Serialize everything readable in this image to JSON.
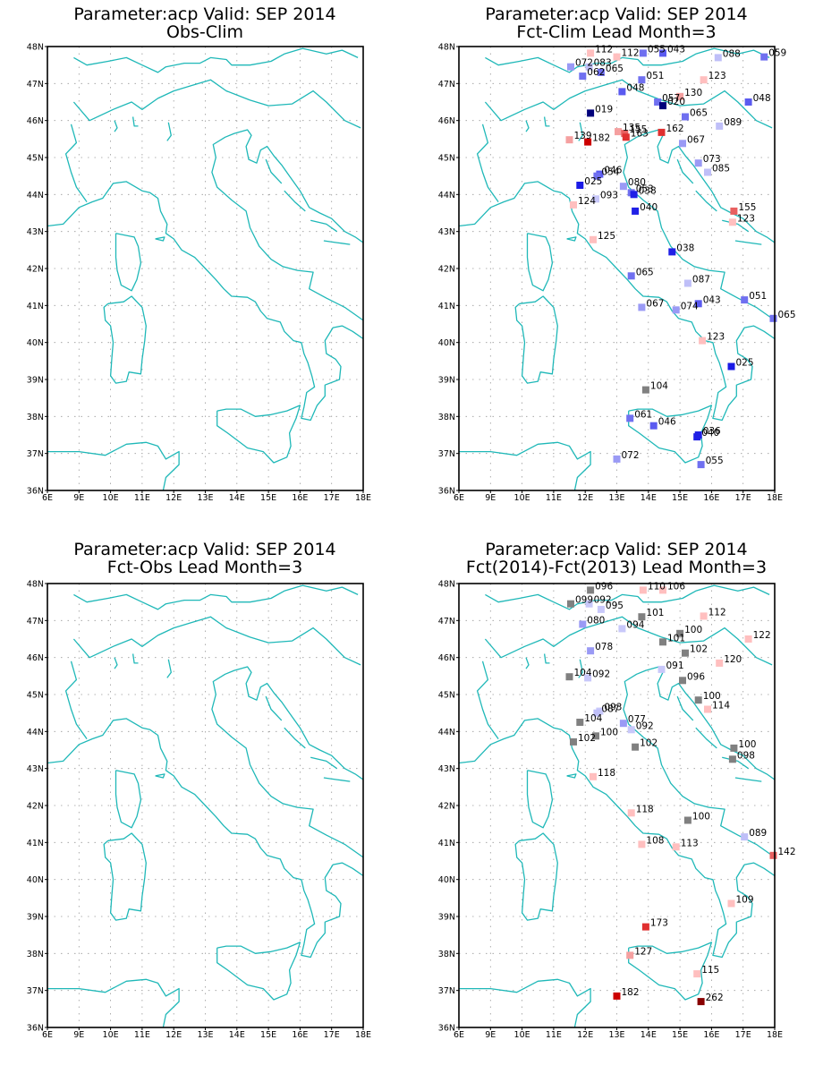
{
  "colors": {
    "coast": "#1fb8b8",
    "grid": "#9a9a9a",
    "neutral_marker": "#808080",
    "scale": {
      "20": "#00007a",
      "25": "#1a1ae6",
      "40": "#2020e6",
      "50": "#5a5af0",
      "65": "#7070f0",
      "80": "#9a9af5",
      "90": "#bfbff8",
      "95": "#c8c8fa",
      "105": "#808080",
      "125": "#ffbfbf",
      "140": "#f5a0a0",
      "160": "#e86060",
      "180": "#e03030",
      "240": "#cc0000",
      "999": "#880000"
    }
  },
  "chart_data": [
    {
      "type": "scatter",
      "panel": "top-left",
      "title": "Parameter:acp Valid: SEP 2014",
      "subtitle": "Obs-Clim",
      "xlabel": "",
      "ylabel": "",
      "xlim": [
        6,
        18
      ],
      "ylim": [
        36,
        48
      ],
      "xticks": [
        "6E",
        "9E",
        "10E",
        "11E",
        "12E",
        "13E",
        "14E",
        "15E",
        "16E",
        "17E",
        "18E"
      ],
      "yticks": [
        "36N",
        "37N",
        "38N",
        "39N",
        "40N",
        "41N",
        "42N",
        "43N",
        "44N",
        "45N",
        "46N",
        "47N",
        "48N"
      ],
      "grid": true,
      "points": []
    },
    {
      "type": "scatter",
      "panel": "top-right",
      "title": "Parameter:acp Valid: SEP 2014",
      "subtitle": "Fct-Clim Lead Month=3",
      "xlabel": "",
      "ylabel": "",
      "xlim": [
        6,
        18
      ],
      "ylim": [
        36,
        48
      ],
      "xticks": [
        "6E",
        "9E",
        "10E",
        "11E",
        "12E",
        "13E",
        "14E",
        "15E",
        "16E",
        "17E",
        "18E"
      ],
      "yticks": [
        "36N",
        "37N",
        "38N",
        "39N",
        "40N",
        "41N",
        "42N",
        "43N",
        "44N",
        "45N",
        "46N",
        "47N",
        "48N"
      ],
      "grid": true,
      "points": [
        {
          "lon": 11.0,
          "lat": 47.82,
          "label": "112"
        },
        {
          "lon": 12.0,
          "lat": 47.72,
          "label": "112"
        },
        {
          "lon": 13.0,
          "lat": 47.82,
          "label": "055"
        },
        {
          "lon": 13.75,
          "lat": 47.82,
          "label": "043"
        },
        {
          "lon": 10.25,
          "lat": 47.45,
          "label": "072"
        },
        {
          "lon": 10.95,
          "lat": 47.45,
          "label": "083"
        },
        {
          "lon": 11.4,
          "lat": 47.3,
          "label": "065"
        },
        {
          "lon": 10.7,
          "lat": 47.2,
          "label": "062"
        },
        {
          "lon": 12.95,
          "lat": 47.1,
          "label": "051"
        },
        {
          "lon": 15.85,
          "lat": 47.7,
          "label": "088"
        },
        {
          "lon": 17.6,
          "lat": 47.72,
          "label": "059"
        },
        {
          "lon": 15.3,
          "lat": 47.1,
          "label": "123"
        },
        {
          "lon": 12.2,
          "lat": 46.78,
          "label": "048"
        },
        {
          "lon": 14.4,
          "lat": 46.65,
          "label": "130"
        },
        {
          "lon": 13.55,
          "lat": 46.5,
          "label": "057"
        },
        {
          "lon": 13.75,
          "lat": 46.4,
          "label": "020"
        },
        {
          "lon": 17.0,
          "lat": 46.5,
          "label": "048"
        },
        {
          "lon": 11.0,
          "lat": 46.2,
          "label": "019"
        },
        {
          "lon": 14.6,
          "lat": 46.1,
          "label": "065"
        },
        {
          "lon": 15.9,
          "lat": 45.85,
          "label": "089"
        },
        {
          "lon": 12.05,
          "lat": 45.7,
          "label": "135"
        },
        {
          "lon": 12.3,
          "lat": 45.65,
          "label": "155"
        },
        {
          "lon": 12.35,
          "lat": 45.55,
          "label": "163"
        },
        {
          "lon": 13.7,
          "lat": 45.68,
          "label": "162"
        },
        {
          "lon": 10.2,
          "lat": 45.48,
          "label": "139"
        },
        {
          "lon": 10.9,
          "lat": 45.42,
          "label": "182"
        },
        {
          "lon": 14.5,
          "lat": 45.38,
          "label": "067"
        },
        {
          "lon": 15.1,
          "lat": 44.85,
          "label": "073"
        },
        {
          "lon": 15.45,
          "lat": 44.6,
          "label": "085"
        },
        {
          "lon": 11.35,
          "lat": 44.55,
          "label": "046"
        },
        {
          "lon": 11.25,
          "lat": 44.5,
          "label": "054"
        },
        {
          "lon": 10.6,
          "lat": 44.25,
          "label": "025"
        },
        {
          "lon": 12.25,
          "lat": 44.22,
          "label": "080"
        },
        {
          "lon": 12.55,
          "lat": 44.05,
          "label": "053"
        },
        {
          "lon": 12.65,
          "lat": 44.0,
          "label": "038"
        },
        {
          "lon": 11.2,
          "lat": 43.88,
          "label": "093"
        },
        {
          "lon": 10.35,
          "lat": 43.72,
          "label": "124"
        },
        {
          "lon": 12.7,
          "lat": 43.55,
          "label": "040"
        },
        {
          "lon": 16.45,
          "lat": 43.55,
          "label": "155"
        },
        {
          "lon": 16.4,
          "lat": 43.25,
          "label": "123"
        },
        {
          "lon": 11.1,
          "lat": 42.78,
          "label": "125"
        },
        {
          "lon": 14.1,
          "lat": 42.45,
          "label": "038"
        },
        {
          "lon": 12.55,
          "lat": 41.8,
          "label": "065"
        },
        {
          "lon": 14.7,
          "lat": 41.6,
          "label": "087"
        },
        {
          "lon": 15.1,
          "lat": 41.05,
          "label": "043"
        },
        {
          "lon": 16.85,
          "lat": 41.15,
          "label": "051"
        },
        {
          "lon": 12.95,
          "lat": 40.95,
          "label": "067"
        },
        {
          "lon": 14.25,
          "lat": 40.88,
          "label": "074"
        },
        {
          "lon": 17.95,
          "lat": 40.65,
          "label": "065"
        },
        {
          "lon": 15.25,
          "lat": 40.05,
          "label": "123"
        },
        {
          "lon": 16.35,
          "lat": 39.35,
          "label": "025"
        },
        {
          "lon": 13.1,
          "lat": 38.72,
          "label": "104"
        },
        {
          "lon": 12.5,
          "lat": 37.95,
          "label": "061"
        },
        {
          "lon": 13.4,
          "lat": 37.75,
          "label": "046"
        },
        {
          "lon": 15.05,
          "lat": 37.45,
          "label": "040"
        },
        {
          "lon": 15.1,
          "lat": 37.5,
          "label": "036"
        },
        {
          "lon": 12.0,
          "lat": 36.85,
          "label": "072"
        },
        {
          "lon": 15.2,
          "lat": 36.7,
          "label": "055"
        }
      ]
    },
    {
      "type": "scatter",
      "panel": "bottom-left",
      "title": "Parameter:acp Valid: SEP 2014",
      "subtitle": "Fct-Obs Lead Month=3",
      "xlabel": "",
      "ylabel": "",
      "xlim": [
        6,
        18
      ],
      "ylim": [
        36,
        48
      ],
      "xticks": [
        "6E",
        "9E",
        "10E",
        "11E",
        "12E",
        "13E",
        "14E",
        "15E",
        "16E",
        "17E",
        "18E"
      ],
      "yticks": [
        "36N",
        "37N",
        "38N",
        "39N",
        "40N",
        "41N",
        "42N",
        "43N",
        "44N",
        "45N",
        "46N",
        "47N",
        "48N"
      ],
      "grid": true,
      "points": []
    },
    {
      "type": "scatter",
      "panel": "bottom-right",
      "title": "Parameter:acp Valid: SEP 2014",
      "subtitle": "Fct(2014)-Fct(2013) Lead Month=3",
      "xlabel": "",
      "ylabel": "",
      "xlim": [
        6,
        18
      ],
      "ylim": [
        36,
        48
      ],
      "xticks": [
        "6E",
        "9E",
        "10E",
        "11E",
        "12E",
        "13E",
        "14E",
        "15E",
        "16E",
        "17E",
        "18E"
      ],
      "yticks": [
        "36N",
        "37N",
        "38N",
        "39N",
        "40N",
        "41N",
        "42N",
        "43N",
        "44N",
        "45N",
        "46N",
        "47N",
        "48N"
      ],
      "grid": true,
      "points": [
        {
          "lon": 11.0,
          "lat": 47.82,
          "label": "096"
        },
        {
          "lon": 13.0,
          "lat": 47.82,
          "label": "110"
        },
        {
          "lon": 13.75,
          "lat": 47.82,
          "label": "106"
        },
        {
          "lon": 10.25,
          "lat": 47.45,
          "label": "099"
        },
        {
          "lon": 10.95,
          "lat": 47.45,
          "label": "092"
        },
        {
          "lon": 11.4,
          "lat": 47.3,
          "label": "095"
        },
        {
          "lon": 12.95,
          "lat": 47.1,
          "label": "101"
        },
        {
          "lon": 15.3,
          "lat": 47.12,
          "label": "112"
        },
        {
          "lon": 10.7,
          "lat": 46.9,
          "label": "080"
        },
        {
          "lon": 12.2,
          "lat": 46.78,
          "label": "094"
        },
        {
          "lon": 14.4,
          "lat": 46.65,
          "label": "100"
        },
        {
          "lon": 17.0,
          "lat": 46.5,
          "label": "122"
        },
        {
          "lon": 13.75,
          "lat": 46.42,
          "label": "101"
        },
        {
          "lon": 14.6,
          "lat": 46.12,
          "label": "102"
        },
        {
          "lon": 11.0,
          "lat": 46.18,
          "label": "078"
        },
        {
          "lon": 15.9,
          "lat": 45.85,
          "label": "120"
        },
        {
          "lon": 13.7,
          "lat": 45.68,
          "label": "091"
        },
        {
          "lon": 10.2,
          "lat": 45.48,
          "label": "104"
        },
        {
          "lon": 10.9,
          "lat": 45.45,
          "label": "092"
        },
        {
          "lon": 14.5,
          "lat": 45.38,
          "label": "096"
        },
        {
          "lon": 15.1,
          "lat": 44.85,
          "label": "100"
        },
        {
          "lon": 15.45,
          "lat": 44.6,
          "label": "114"
        },
        {
          "lon": 11.35,
          "lat": 44.55,
          "label": "093"
        },
        {
          "lon": 11.25,
          "lat": 44.5,
          "label": "087"
        },
        {
          "lon": 10.6,
          "lat": 44.25,
          "label": "104"
        },
        {
          "lon": 12.25,
          "lat": 44.22,
          "label": "077"
        },
        {
          "lon": 12.55,
          "lat": 44.05,
          "label": "092"
        },
        {
          "lon": 11.2,
          "lat": 43.88,
          "label": "100"
        },
        {
          "lon": 10.35,
          "lat": 43.72,
          "label": "102"
        },
        {
          "lon": 12.7,
          "lat": 43.58,
          "label": "102"
        },
        {
          "lon": 16.45,
          "lat": 43.55,
          "label": "100"
        },
        {
          "lon": 16.4,
          "lat": 43.25,
          "label": "098"
        },
        {
          "lon": 11.1,
          "lat": 42.78,
          "label": "118"
        },
        {
          "lon": 12.55,
          "lat": 41.8,
          "label": "118"
        },
        {
          "lon": 14.7,
          "lat": 41.6,
          "label": "100"
        },
        {
          "lon": 16.85,
          "lat": 41.15,
          "label": "089"
        },
        {
          "lon": 12.95,
          "lat": 40.95,
          "label": "108"
        },
        {
          "lon": 14.25,
          "lat": 40.88,
          "label": "113"
        },
        {
          "lon": 17.95,
          "lat": 40.65,
          "label": "142"
        },
        {
          "lon": 16.35,
          "lat": 39.35,
          "label": "109"
        },
        {
          "lon": 13.1,
          "lat": 38.72,
          "label": "173"
        },
        {
          "lon": 12.5,
          "lat": 37.95,
          "label": "127"
        },
        {
          "lon": 15.05,
          "lat": 37.45,
          "label": "115"
        },
        {
          "lon": 12.0,
          "lat": 36.85,
          "label": "182"
        },
        {
          "lon": 15.2,
          "lat": 36.7,
          "label": "262"
        }
      ]
    }
  ]
}
